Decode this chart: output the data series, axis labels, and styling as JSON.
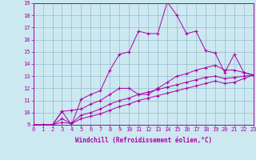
{
  "background_color": "#cce8f0",
  "line_color": "#aa00aa",
  "grid_color": "#99bbcc",
  "xlabel": "Windchill (Refroidissement éolien,°C)",
  "xlim": [
    0,
    23
  ],
  "ylim": [
    9,
    19
  ],
  "yticks": [
    9,
    10,
    11,
    12,
    13,
    14,
    15,
    16,
    17,
    18,
    19
  ],
  "xticks": [
    0,
    1,
    2,
    3,
    4,
    5,
    6,
    7,
    8,
    9,
    10,
    11,
    12,
    13,
    14,
    15,
    16,
    17,
    18,
    19,
    20,
    21,
    22,
    23
  ],
  "lines": [
    [
      9.0,
      8.9,
      9.0,
      10.1,
      9.0,
      11.1,
      11.5,
      11.8,
      13.5,
      14.8,
      15.0,
      16.7,
      16.5,
      16.5,
      19.1,
      18.0,
      16.5,
      16.7,
      15.1,
      14.9,
      13.3,
      14.8,
      13.3,
      13.1
    ],
    [
      9.0,
      9.0,
      9.0,
      10.1,
      10.2,
      10.3,
      10.7,
      11.0,
      11.5,
      12.0,
      12.0,
      11.5,
      11.5,
      12.0,
      12.5,
      13.0,
      13.2,
      13.5,
      13.7,
      13.9,
      13.5,
      13.5,
      13.3,
      13.1
    ],
    [
      9.0,
      9.0,
      9.0,
      9.5,
      9.1,
      9.8,
      10.0,
      10.3,
      10.7,
      11.0,
      11.2,
      11.5,
      11.7,
      11.9,
      12.1,
      12.3,
      12.5,
      12.7,
      12.9,
      13.0,
      12.8,
      12.9,
      13.0,
      13.1
    ],
    [
      9.0,
      9.0,
      9.0,
      9.2,
      9.1,
      9.5,
      9.7,
      9.9,
      10.2,
      10.5,
      10.7,
      11.0,
      11.2,
      11.4,
      11.6,
      11.8,
      12.0,
      12.2,
      12.4,
      12.6,
      12.4,
      12.5,
      12.8,
      13.1
    ]
  ],
  "marker": "+",
  "tick_fontsize": 5.0,
  "xlabel_fontsize": 5.5
}
